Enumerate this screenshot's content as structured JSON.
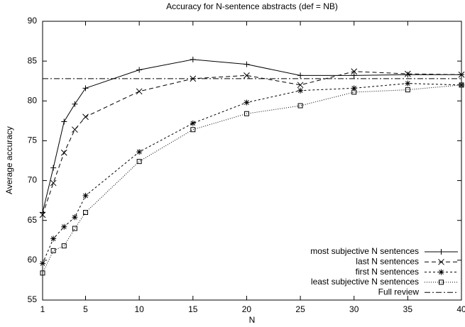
{
  "chart_data": {
    "type": "line",
    "title": "Accuracy for N-sentence abstracts (def =  NB)",
    "x_label": "N",
    "y_label": "Average accuracy",
    "x": [
      1,
      2,
      3,
      4,
      5,
      10,
      15,
      20,
      25,
      30,
      35,
      40
    ],
    "xlim": [
      1,
      40
    ],
    "xticks": [
      1,
      5,
      10,
      15,
      20,
      25,
      30,
      35,
      40
    ],
    "ylim": [
      55,
      90
    ],
    "yticks": [
      55,
      60,
      65,
      70,
      75,
      80,
      85,
      90
    ],
    "legend": "bottom-right",
    "series": [
      {
        "name": "most subjective N sentences",
        "color": "#000000",
        "marker": "plus",
        "dash": "none",
        "values": [
          66,
          71.6,
          77.4,
          79.6,
          81.6,
          83.9,
          85.2,
          84.6,
          83.2,
          83.2,
          83.3,
          83.3
        ]
      },
      {
        "name": "last N sentences",
        "color": "#000000",
        "marker": "cross",
        "dash": "6,4",
        "values": [
          65.7,
          69.7,
          73.5,
          76.4,
          78,
          81.2,
          82.8,
          83.2,
          82,
          83.7,
          83.4,
          83.3
        ]
      },
      {
        "name": "first N sentences",
        "color": "#000000",
        "marker": "star",
        "dash": "3,3",
        "values": [
          59.6,
          62.7,
          64.2,
          65.4,
          68.1,
          73.6,
          77.2,
          79.8,
          81.3,
          81.6,
          82.2,
          82
        ]
      },
      {
        "name": "least subjective N sentences",
        "color": "#000000",
        "marker": "square",
        "dash": "1,2",
        "values": [
          58.4,
          61.2,
          61.8,
          64,
          66,
          72.4,
          76.4,
          78.4,
          79.4,
          81.1,
          81.4,
          82
        ]
      }
    ],
    "hlines": [
      {
        "name": "Full review",
        "value": 82.8,
        "color": "#000000",
        "dash": "8,3,2,3"
      }
    ]
  }
}
